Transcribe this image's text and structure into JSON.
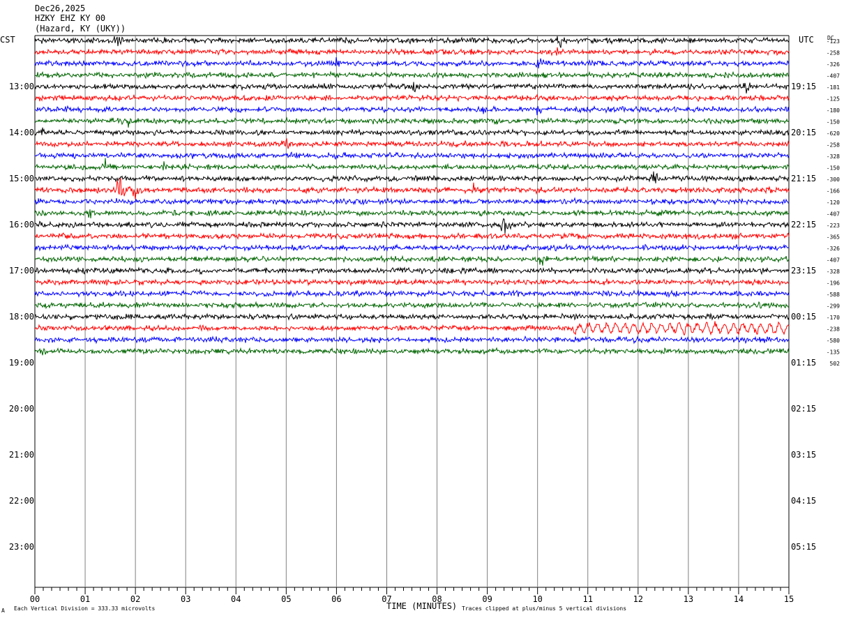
{
  "header": {
    "date": "Dec26,2025",
    "station": "HZKY EHZ KY 00",
    "location": "(Hazard, KY (UKY))"
  },
  "left_axis_label": "CST",
  "right_axis_label": "UTC",
  "dc_label": "DC",
  "footer": {
    "scale_note": "Each Vertical Division =  333.33 microvolts",
    "clip_note": "Traces clipped at plus/minus 5 vertical divisions",
    "mark": "A"
  },
  "colors": {
    "cycle": [
      "#000000",
      "#ff0000",
      "#0000ff",
      "#006400"
    ],
    "grid": "#808080"
  },
  "chart_data": {
    "type": "line",
    "title": "",
    "xlabel": "TIME (MINUTES)",
    "xlim": [
      0,
      15
    ],
    "x_ticks": [
      "00",
      "01",
      "02",
      "03",
      "04",
      "05",
      "06",
      "07",
      "08",
      "09",
      "10",
      "11",
      "12",
      "13",
      "14",
      "15"
    ],
    "cst_hours": [
      "13:00",
      "14:00",
      "15:00",
      "16:00",
      "17:00",
      "18:00",
      "19:00",
      "20:00",
      "21:00",
      "22:00",
      "23:00"
    ],
    "utc_hours": [
      "19:15",
      "20:15",
      "21:15",
      "22:15",
      "23:15",
      "00:15",
      "01:15",
      "02:15",
      "03:15",
      "04:15",
      "05:15"
    ],
    "dc_offsets": [
      "-123",
      "-258",
      "-326",
      "-407",
      "-181",
      "-125",
      "-180",
      "-150",
      "-620",
      "-258",
      "-328",
      "-150",
      "-300",
      "-166",
      "-120",
      "-407",
      "-223",
      "-365",
      "-326",
      "-407",
      "-328",
      "-196",
      "-588",
      "-299",
      "-170",
      "-238",
      "-580",
      "-135",
      "502"
    ],
    "traces_recorded": 28,
    "trace_events": [
      {
        "trace": 0,
        "minute": 1.65,
        "amplitude": 1.6
      },
      {
        "trace": 0,
        "minute": 10.45,
        "amplitude": 1.9
      },
      {
        "trace": 1,
        "minute": 10.35,
        "amplitude": 1.2
      },
      {
        "trace": 2,
        "minute": 10.05,
        "amplitude": 1.5
      },
      {
        "trace": 2,
        "minute": 6.0,
        "amplitude": 0.8
      },
      {
        "trace": 4,
        "minute": 7.55,
        "amplitude": 1.0
      },
      {
        "trace": 4,
        "minute": 14.15,
        "amplitude": 1.0
      },
      {
        "trace": 6,
        "minute": 8.9,
        "amplitude": 1.0
      },
      {
        "trace": 6,
        "minute": 10.0,
        "amplitude": 1.0
      },
      {
        "trace": 7,
        "minute": 1.85,
        "amplitude": 1.0
      },
      {
        "trace": 8,
        "minute": 0.15,
        "amplitude": 1.0
      },
      {
        "trace": 9,
        "minute": 5.0,
        "amplitude": 1.2
      },
      {
        "trace": 11,
        "minute": 1.4,
        "amplitude": 1.0
      },
      {
        "trace": 11,
        "minute": 2.55,
        "amplitude": 1.0
      },
      {
        "trace": 12,
        "minute": 12.35,
        "amplitude": 1.0
      },
      {
        "trace": 13,
        "minute": 1.7,
        "amplitude": 3.0
      },
      {
        "trace": 13,
        "minute": 2.0,
        "amplitude": 2.5
      },
      {
        "trace": 13,
        "minute": 8.75,
        "amplitude": 1.2
      },
      {
        "trace": 14,
        "minute": 6.5,
        "amplitude": 0.8
      },
      {
        "trace": 15,
        "minute": 1.1,
        "amplitude": 0.9
      },
      {
        "trace": 16,
        "minute": 9.32,
        "amplitude": 3.5
      },
      {
        "trace": 18,
        "minute": 6.1,
        "amplitude": 0.9
      },
      {
        "trace": 19,
        "minute": 10.1,
        "amplitude": 1.0
      },
      {
        "trace": 20,
        "minute": 7.3,
        "amplitude": 0.8
      },
      {
        "trace": 27,
        "minute": 0.15,
        "amplitude": 1.0
      }
    ],
    "trace_oscillation": {
      "trace": 25,
      "start_minute": 10.7,
      "end_minute": 15.0,
      "amplitude": 0.6
    }
  }
}
